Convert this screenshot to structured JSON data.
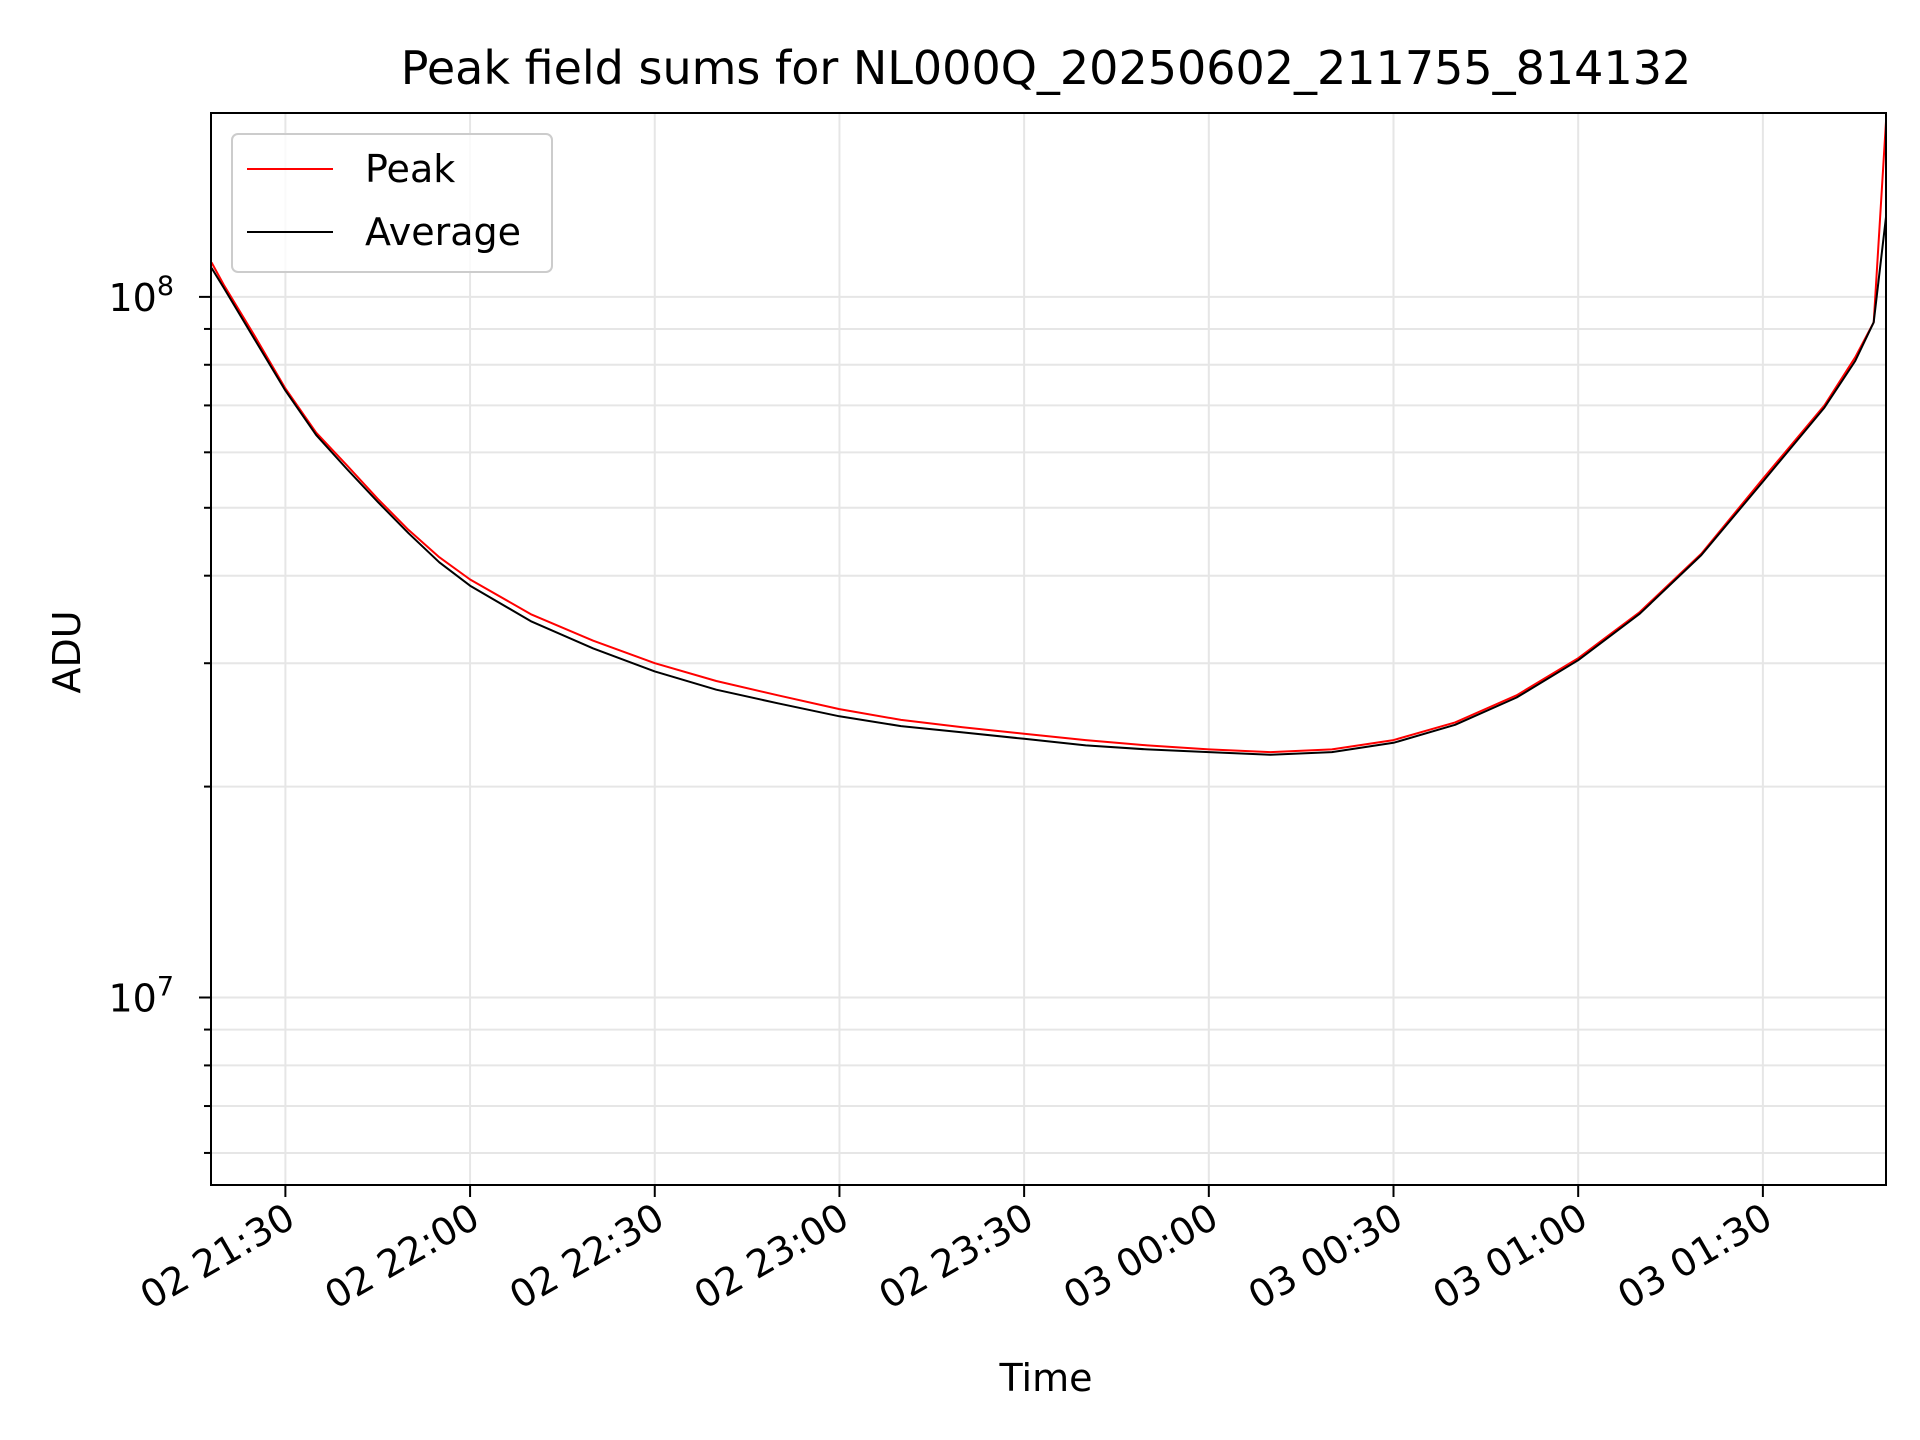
{
  "chart_data": {
    "type": "line",
    "title": "Peak field sums for NL000Q_20250602_211755_814132",
    "xlabel": "Time",
    "ylabel": "ADU",
    "y_scale": "log",
    "ylim": [
      5400000,
      183000000
    ],
    "xlim": [
      "2025-06-02 21:17:55",
      "2025-06-03 01:50:00"
    ],
    "x_ticks": [
      {
        "value": "2025-06-02 21:30",
        "label": "02 21:30"
      },
      {
        "value": "2025-06-02 22:00",
        "label": "02 22:00"
      },
      {
        "value": "2025-06-02 22:30",
        "label": "02 22:30"
      },
      {
        "value": "2025-06-02 23:00",
        "label": "02 23:00"
      },
      {
        "value": "2025-06-02 23:30",
        "label": "02 23:30"
      },
      {
        "value": "2025-06-03 00:00",
        "label": "03 00:00"
      },
      {
        "value": "2025-06-03 00:30",
        "label": "03 00:30"
      },
      {
        "value": "2025-06-03 01:00",
        "label": "03 01:00"
      },
      {
        "value": "2025-06-03 01:30",
        "label": "03 01:30"
      }
    ],
    "y_ticks": [
      {
        "value": 10000000,
        "base": "10",
        "exp": "7"
      },
      {
        "value": 100000000,
        "base": "10",
        "exp": "8"
      }
    ],
    "grid": true,
    "legend": {
      "placement": "top-left"
    },
    "x": [
      "2025-06-02 21:18",
      "2025-06-02 21:20",
      "2025-06-02 21:25",
      "2025-06-02 21:30",
      "2025-06-02 21:35",
      "2025-06-02 21:40",
      "2025-06-02 21:45",
      "2025-06-02 21:50",
      "2025-06-02 21:55",
      "2025-06-02 22:00",
      "2025-06-02 22:10",
      "2025-06-02 22:20",
      "2025-06-02 22:30",
      "2025-06-02 22:40",
      "2025-06-02 22:50",
      "2025-06-02 23:00",
      "2025-06-02 23:10",
      "2025-06-02 23:20",
      "2025-06-02 23:30",
      "2025-06-02 23:40",
      "2025-06-02 23:50",
      "2025-06-03 00:00",
      "2025-06-03 00:10",
      "2025-06-03 00:20",
      "2025-06-03 00:30",
      "2025-06-03 00:40",
      "2025-06-03 00:50",
      "2025-06-03 01:00",
      "2025-06-03 01:10",
      "2025-06-03 01:20",
      "2025-06-03 01:30",
      "2025-06-03 01:40",
      "2025-06-03 01:45",
      "2025-06-03 01:48",
      "2025-06-03 01:50"
    ],
    "series": [
      {
        "name": "Peak",
        "color": "#ff0000",
        "values": [
          112000000,
          104000000,
          88000000,
          74000000,
          64000000,
          57500000,
          51500000,
          46500000,
          42500000,
          39500000,
          35200000,
          32300000,
          30000000,
          28300000,
          27000000,
          25800000,
          24900000,
          24300000,
          23800000,
          23300000,
          22900000,
          22600000,
          22400000,
          22600000,
          23300000,
          24700000,
          27000000,
          30500000,
          35500000,
          43000000,
          55000000,
          70000000,
          82000000,
          92000000,
          178000000
        ]
      },
      {
        "name": "Average",
        "color": "#000000",
        "values": [
          110000000,
          103000000,
          87000000,
          73500000,
          63500000,
          56800000,
          51000000,
          46000000,
          41800000,
          38700000,
          34400000,
          31500000,
          29200000,
          27500000,
          26300000,
          25200000,
          24400000,
          23900000,
          23400000,
          22900000,
          22600000,
          22400000,
          22200000,
          22400000,
          23100000,
          24500000,
          26800000,
          30300000,
          35300000,
          42800000,
          54500000,
          69500000,
          81000000,
          92000000,
          130000000
        ]
      }
    ]
  }
}
